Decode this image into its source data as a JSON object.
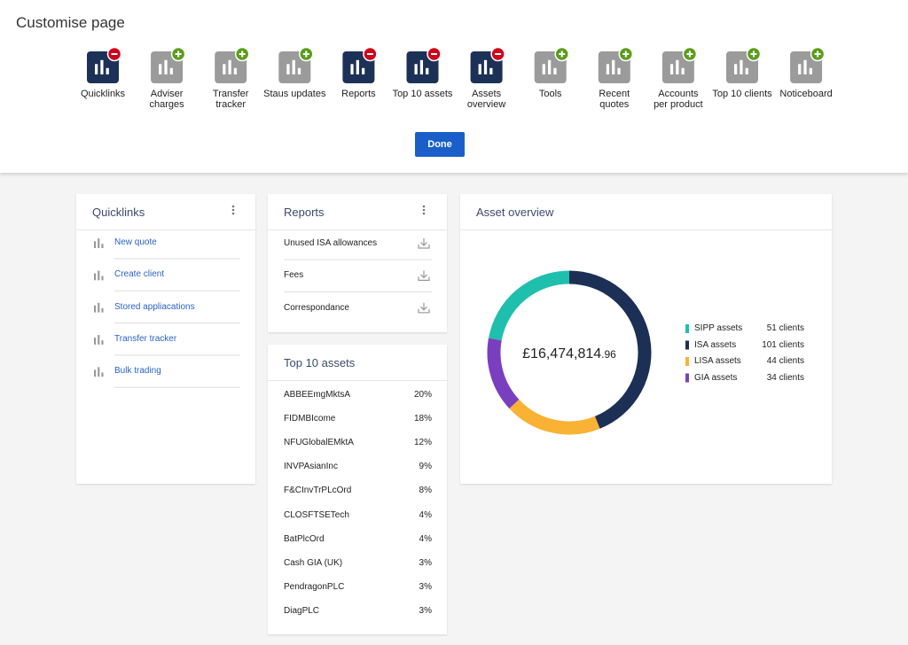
{
  "header": {
    "title": "Customise page",
    "widgets": [
      {
        "label": "Quicklinks",
        "state": "remove"
      },
      {
        "label": "Adviser\ncharges",
        "state": "add"
      },
      {
        "label": "Transfer\ntracker",
        "state": "add"
      },
      {
        "label": "Staus updates",
        "state": "add"
      },
      {
        "label": "Reports",
        "state": "remove"
      },
      {
        "label": "Top 10 assets",
        "state": "remove"
      },
      {
        "label": "Assets\noverview",
        "state": "remove"
      },
      {
        "label": "Tools",
        "state": "add"
      },
      {
        "label": "Recent\nquotes",
        "state": "add"
      },
      {
        "label": "Accounts\nper product",
        "state": "add"
      },
      {
        "label": "Top 10 clients",
        "state": "add"
      },
      {
        "label": "Noticeboard",
        "state": "add"
      }
    ],
    "button": "Done"
  },
  "quicklinks": {
    "title": "Quicklinks",
    "items": [
      "New quote",
      "Create client",
      "Stored appliacations",
      "Transfer tracker",
      "Bulk trading"
    ]
  },
  "reports": {
    "title": "Reports",
    "items": [
      "Unused ISA allowances",
      "Fees",
      "Correspondance"
    ]
  },
  "top_assets": {
    "title": "Top 10 assets",
    "rows": [
      [
        "ABBEEmgMktsA",
        "20%"
      ],
      [
        "FIDMBIcome",
        "18%"
      ],
      [
        "NFUGlobalEMktA",
        "12%"
      ],
      [
        "INVPAsianInc",
        "9%"
      ],
      [
        "F&CInvTrPLcOrd",
        "8%"
      ],
      [
        "CLOSFTSETech",
        "4%"
      ],
      [
        "BatPlcOrd",
        "4%"
      ],
      [
        "Cash GIA (UK)",
        "3%"
      ],
      [
        "PendragonPLC",
        "3%"
      ],
      [
        "DiagPLC",
        "3%"
      ]
    ]
  },
  "asset_overview": {
    "title": "Asset overview",
    "total": "£16,474,814",
    "total_fraction": ".96",
    "chart_data": {
      "type": "donut",
      "categories": [
        "SIPP assets",
        "ISA assets",
        "LISA assets",
        "GIA assets"
      ],
      "values": [
        51,
        101,
        44,
        34
      ],
      "value_labels": [
        "51 clients",
        "101 clients",
        "44 clients",
        "34 clients"
      ],
      "colors": [
        "#1fbfae",
        "#1c2f55",
        "#f9b233",
        "#7a3fbf"
      ]
    }
  }
}
